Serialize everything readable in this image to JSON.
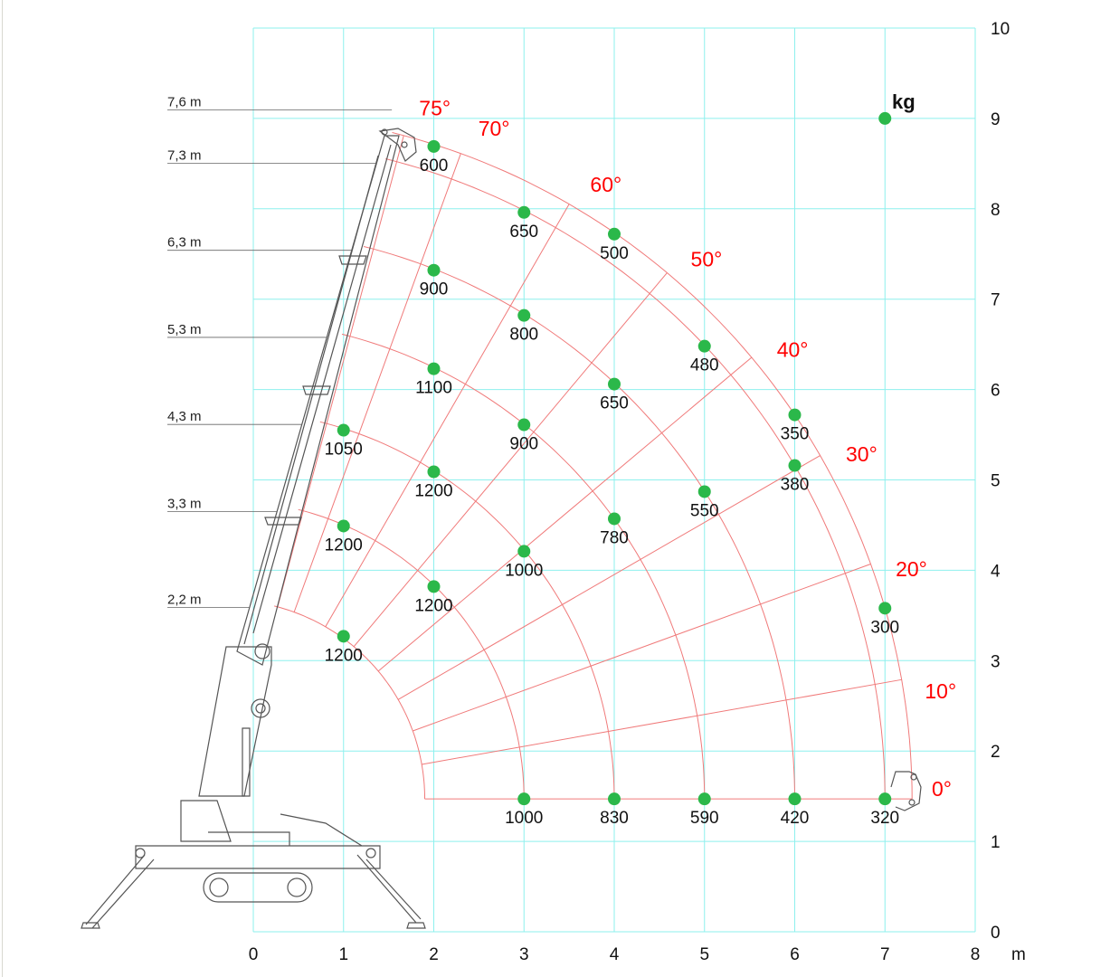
{
  "chart_data": {
    "type": "scatter",
    "xlabel": "m",
    "legend_label": "kg",
    "xlim": [
      0,
      8
    ],
    "ylim": [
      0,
      10
    ],
    "x_ticks": [
      "0",
      "1",
      "2",
      "3",
      "4",
      "5",
      "6",
      "7",
      "8"
    ],
    "y_ticks": [
      "0",
      "1",
      "2",
      "3",
      "4",
      "5",
      "6",
      "7",
      "8",
      "9",
      "10"
    ],
    "grid": true,
    "colors": {
      "grid": "#8ef0ee",
      "arcs": "#f07a7a",
      "angle_labels": "#ff0000",
      "points": "#2bb84a"
    },
    "pivot": [
      -0.3,
      1.47
    ],
    "boom_lengths": [
      "7,6 m",
      "7,3 m",
      "6,3 m",
      "5,3 m",
      "4,3 m",
      "3,3 m",
      "2,2 m"
    ],
    "boom_length_values": [
      7.6,
      7.3,
      6.3,
      5.3,
      4.3,
      3.3,
      2.2
    ],
    "angles": [
      "75°",
      "70°",
      "60°",
      "50°",
      "40°",
      "30°",
      "20°",
      "10°",
      "0°"
    ],
    "angle_values": [
      75,
      70,
      60,
      50,
      40,
      30,
      20,
      10,
      0
    ],
    "points": [
      {
        "x": 2,
        "y": 8.69,
        "load": "600"
      },
      {
        "x": 3,
        "y": 7.96,
        "load": "650"
      },
      {
        "x": 4,
        "y": 7.72,
        "load": "500"
      },
      {
        "x": 2,
        "y": 7.32,
        "load": "900"
      },
      {
        "x": 3,
        "y": 6.82,
        "load": "800"
      },
      {
        "x": 5,
        "y": 6.48,
        "load": "480"
      },
      {
        "x": 2,
        "y": 6.23,
        "load": "1100"
      },
      {
        "x": 4,
        "y": 6.06,
        "load": "650"
      },
      {
        "x": 6,
        "y": 5.72,
        "load": "350"
      },
      {
        "x": 1,
        "y": 5.55,
        "load": "1050"
      },
      {
        "x": 3,
        "y": 5.61,
        "load": "900"
      },
      {
        "x": 6,
        "y": 5.16,
        "load": "380"
      },
      {
        "x": 2,
        "y": 5.09,
        "load": "1200"
      },
      {
        "x": 5,
        "y": 4.87,
        "load": "550"
      },
      {
        "x": 4,
        "y": 4.57,
        "load": "780"
      },
      {
        "x": 1,
        "y": 4.49,
        "load": "1200"
      },
      {
        "x": 3,
        "y": 4.21,
        "load": "1000"
      },
      {
        "x": 2,
        "y": 3.82,
        "load": "1200"
      },
      {
        "x": 7,
        "y": 3.58,
        "load": "300"
      },
      {
        "x": 1,
        "y": 3.27,
        "load": "1200"
      },
      {
        "x": 3,
        "y": 1.47,
        "load": "1000"
      },
      {
        "x": 4,
        "y": 1.47,
        "load": "830"
      },
      {
        "x": 5,
        "y": 1.47,
        "load": "590"
      },
      {
        "x": 6,
        "y": 1.47,
        "load": "420"
      },
      {
        "x": 7,
        "y": 1.47,
        "load": "320"
      }
    ],
    "legend_point": {
      "x": 7,
      "y": 9
    }
  }
}
